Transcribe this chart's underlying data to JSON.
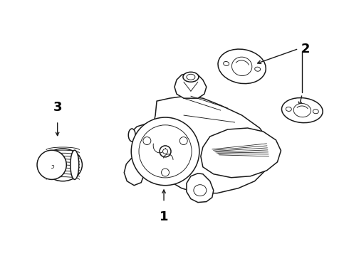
{
  "bg_color": "#ffffff",
  "line_color": "#1a1a1a",
  "label_color": "#000000",
  "figsize": [
    4.9,
    3.6
  ],
  "dpi": 100,
  "xlim": [
    0,
    490
  ],
  "ylim": [
    0,
    360
  ],
  "label_fontsize": 13,
  "arrow_lw": 1.0,
  "main_lw": 1.1,
  "thin_lw": 0.65,
  "part1_label": "1",
  "part2_label": "2",
  "part3_label": "3"
}
